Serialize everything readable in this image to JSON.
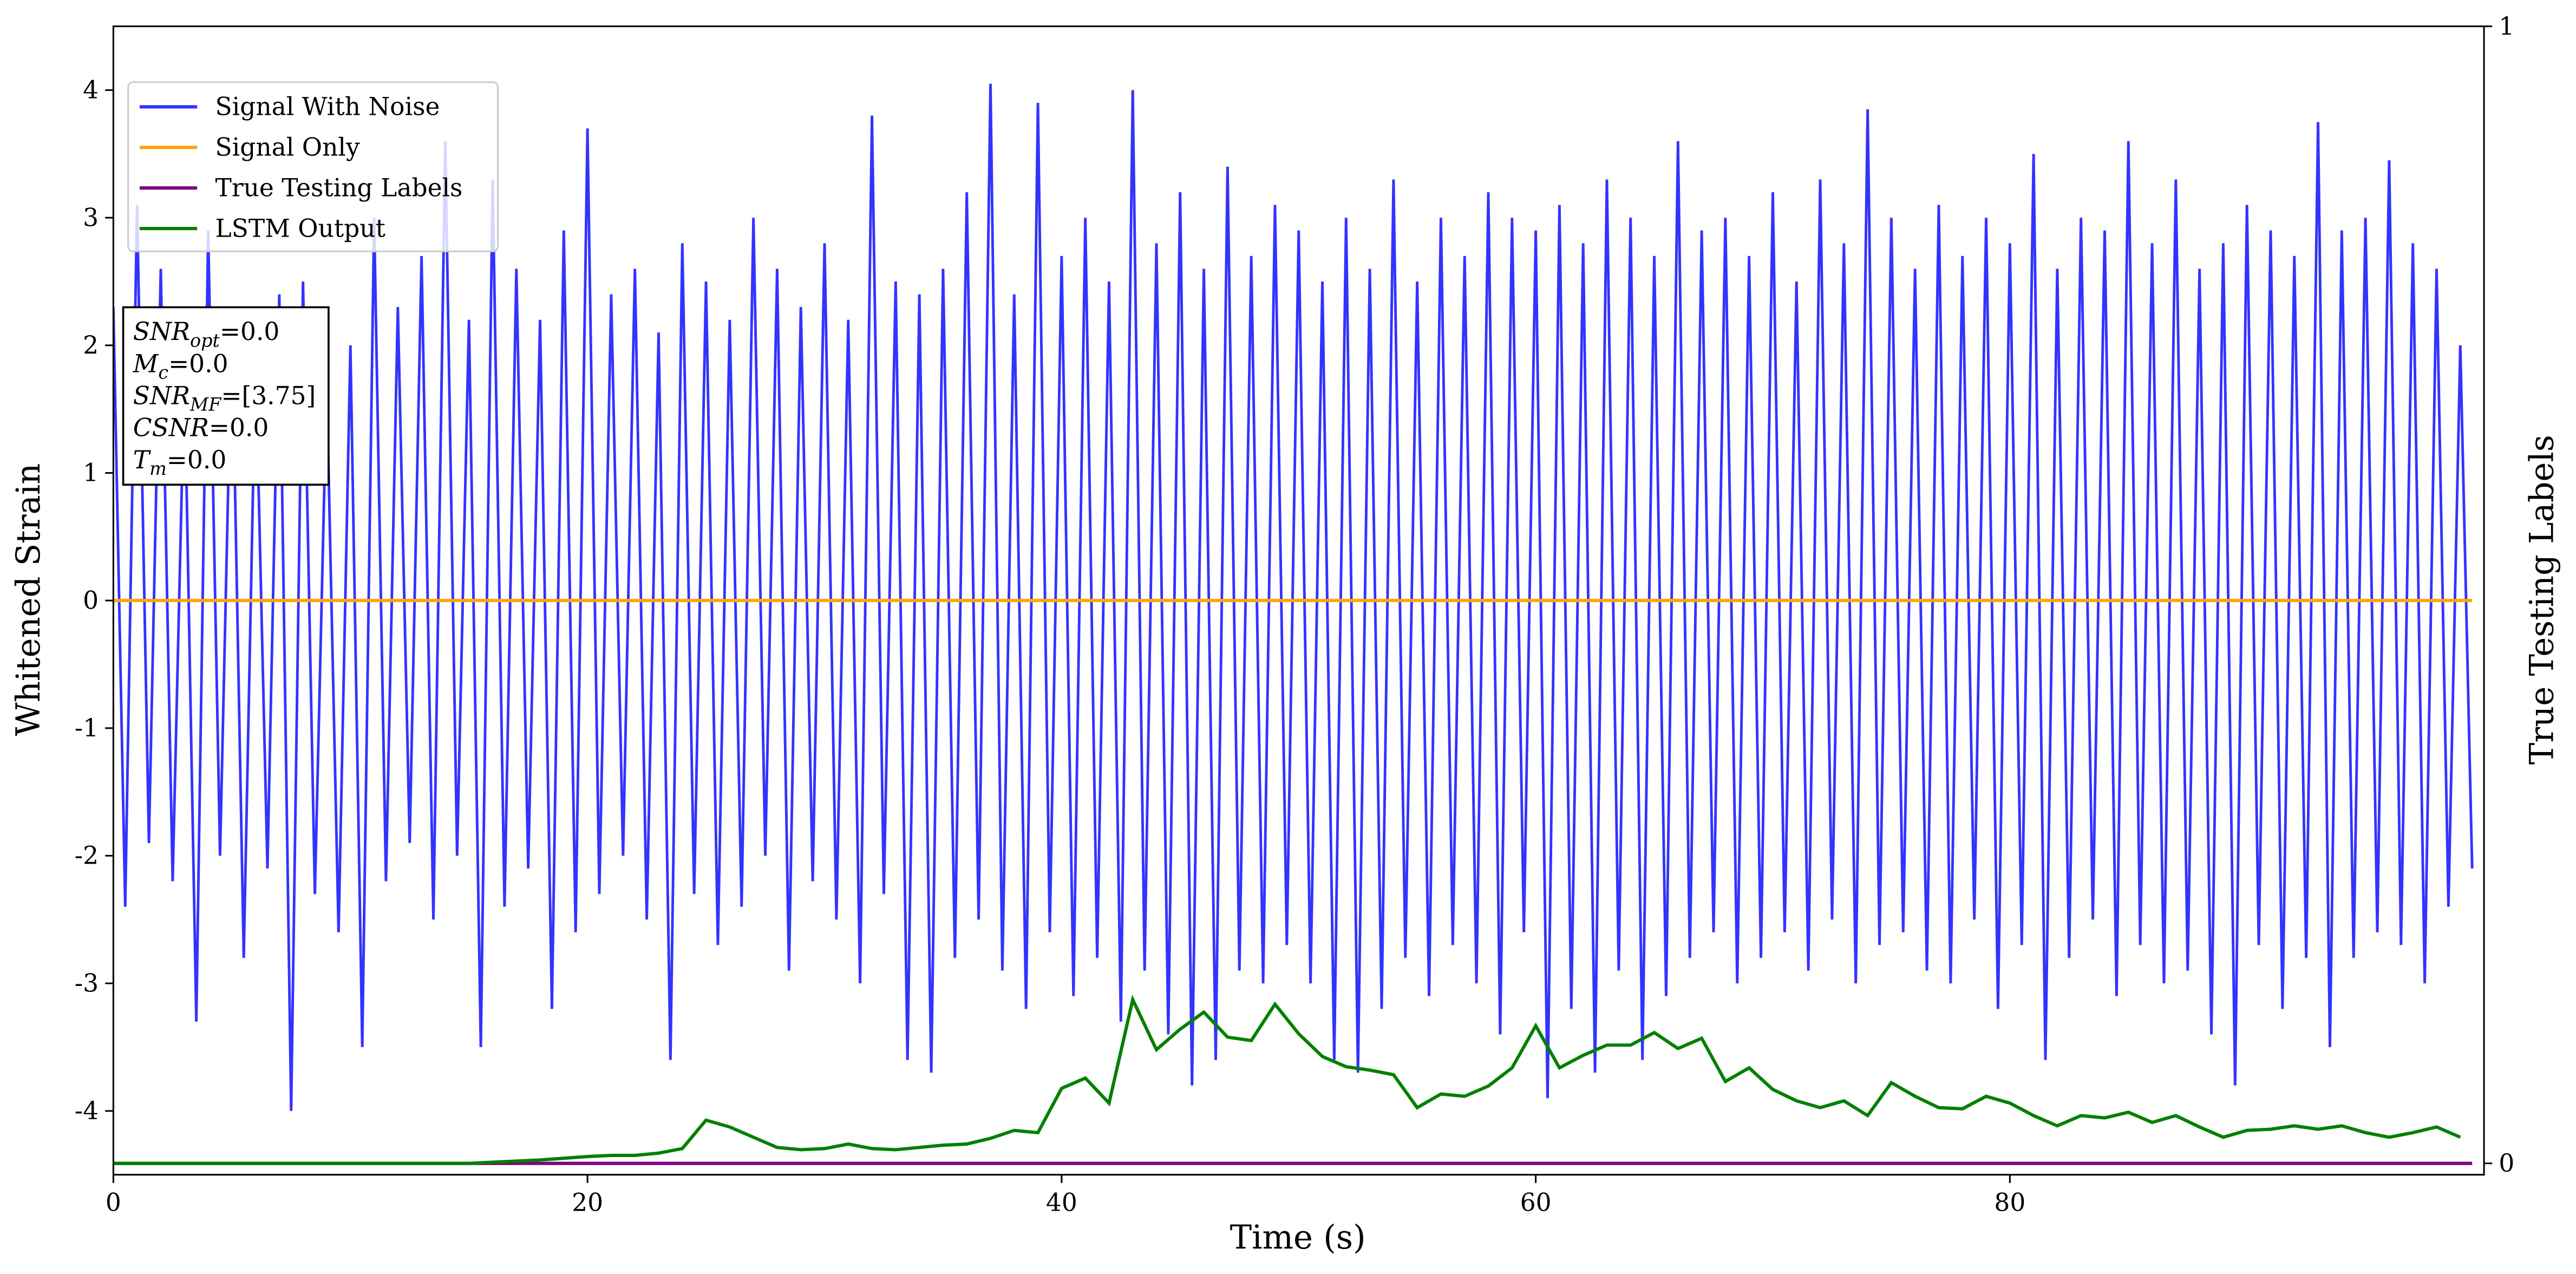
{
  "chart_data": {
    "type": "line",
    "xlabel": "Time (s)",
    "ylabel": "Whitened Strain",
    "y2label": "True Testing Labels",
    "xlim": [
      0,
      100
    ],
    "xticks": [
      0,
      20,
      40,
      60,
      80
    ],
    "ylim": [
      -4.5,
      4.5
    ],
    "yticks": [
      -4,
      -3,
      -2,
      -1,
      0,
      1,
      2,
      3,
      4
    ],
    "y2lim": [
      -0.01,
      1
    ],
    "y2ticks": [
      0,
      1
    ],
    "legend": "upper left",
    "series": [
      {
        "name": "Signal With Noise",
        "color": "#3333ff",
        "x": [
          0,
          0.5,
          1,
          1.5,
          2,
          2.5,
          3,
          3.5,
          4,
          4.5,
          5,
          5.5,
          6,
          6.5,
          7,
          7.5,
          8,
          8.5,
          9,
          9.5,
          10,
          10.5,
          11,
          11.5,
          12,
          12.5,
          13,
          13.5,
          14,
          14.5,
          15,
          15.5,
          16,
          16.5,
          17,
          17.5,
          18,
          18.5,
          19,
          19.5,
          20,
          20.5,
          21,
          21.5,
          22,
          22.5,
          23,
          23.5,
          24,
          24.5,
          25,
          25.5,
          26,
          26.5,
          27,
          27.5,
          28,
          28.5,
          29,
          29.5,
          30,
          30.5,
          31,
          31.5,
          32,
          32.5,
          33,
          33.5,
          34,
          34.5,
          35,
          35.5,
          36,
          36.5,
          37,
          37.5,
          38,
          38.5,
          39,
          39.5,
          40,
          40.5,
          41,
          41.5,
          42,
          42.5,
          43,
          43.5,
          44,
          44.5,
          45,
          45.5,
          46,
          46.5,
          47,
          47.5,
          48,
          48.5,
          49,
          49.5,
          50,
          50.5,
          51,
          51.5,
          52,
          52.5,
          53,
          53.5,
          54,
          54.5,
          55,
          55.5,
          56,
          56.5,
          57,
          57.5,
          58,
          58.5,
          59,
          59.5,
          60,
          60.5,
          61,
          61.5,
          62,
          62.5,
          63,
          63.5,
          64,
          64.5,
          65,
          65.5,
          66,
          66.5,
          67,
          67.5,
          68,
          68.5,
          69,
          69.5,
          70,
          70.5,
          71,
          71.5,
          72,
          72.5,
          73,
          73.5,
          74,
          74.5,
          75,
          75.5,
          76,
          76.5,
          77,
          77.5,
          78,
          78.5,
          79,
          79.5,
          80,
          80.5,
          81,
          81.5,
          82,
          82.5,
          83,
          83.5,
          84,
          84.5,
          85,
          85.5,
          86,
          86.5,
          87,
          87.5,
          88,
          88.5,
          89,
          89.5,
          90,
          90.5,
          91,
          91.5,
          92,
          92.5,
          93,
          93.5,
          94,
          94.5,
          95,
          95.5,
          96,
          96.5,
          97,
          97.5,
          98,
          98.5,
          99,
          99.5
        ],
        "values": [
          2.3,
          -2.4,
          3.1,
          -1.9,
          2.6,
          -2.2,
          1.8,
          -3.3,
          2.9,
          -2.0,
          2.2,
          -2.8,
          1.9,
          -2.1,
          2.4,
          -4.0,
          2.5,
          -2.3,
          1.7,
          -2.6,
          2.0,
          -3.5,
          3.0,
          -2.2,
          2.3,
          -1.9,
          2.7,
          -2.5,
          3.6,
          -2.0,
          2.2,
          -3.5,
          3.3,
          -2.4,
          2.6,
          -2.1,
          2.2,
          -3.2,
          2.9,
          -2.6,
          3.7,
          -2.3,
          2.4,
          -2.0,
          2.6,
          -2.5,
          2.1,
          -3.6,
          2.8,
          -2.3,
          2.5,
          -2.7,
          2.2,
          -2.4,
          3.0,
          -2.0,
          2.6,
          -2.9,
          2.3,
          -2.2,
          2.8,
          -2.5,
          2.2,
          -3.0,
          3.8,
          -2.3,
          2.5,
          -3.6,
          2.4,
          -3.7,
          2.6,
          -2.8,
          3.2,
          -2.5,
          4.05,
          -2.9,
          2.4,
          -3.2,
          3.9,
          -2.6,
          2.7,
          -3.1,
          3.0,
          -2.8,
          2.5,
          -3.3,
          4.0,
          -2.9,
          2.8,
          -3.4,
          3.2,
          -3.8,
          2.6,
          -3.6,
          3.4,
          -2.9,
          2.7,
          -3.0,
          3.1,
          -2.7,
          2.9,
          -3.0,
          2.5,
          -3.6,
          3.0,
          -3.7,
          2.6,
          -3.2,
          3.3,
          -2.8,
          2.5,
          -3.1,
          3.0,
          -2.7,
          2.7,
          -3.0,
          3.2,
          -3.4,
          3.0,
          -2.6,
          2.9,
          -3.9,
          3.1,
          -3.2,
          2.8,
          -3.7,
          3.3,
          -2.9,
          3.0,
          -3.6,
          2.7,
          -3.1,
          3.6,
          -2.8,
          2.9,
          -2.6,
          3.0,
          -3.0,
          2.7,
          -2.8,
          3.2,
          -2.6,
          2.5,
          -2.9,
          3.3,
          -2.5,
          2.8,
          -3.0,
          3.85,
          -2.7,
          3.0,
          -2.6,
          2.6,
          -2.9,
          3.1,
          -3.0,
          2.7,
          -2.5,
          3.0,
          -3.2,
          2.8,
          -2.7,
          3.5,
          -3.6,
          2.6,
          -2.8,
          3.0,
          -2.5,
          2.9,
          -3.1,
          3.6,
          -2.7,
          2.8,
          -3.0,
          3.3,
          -2.9,
          2.6,
          -3.4,
          2.8,
          -3.8,
          3.1,
          -2.7,
          2.9,
          -3.2,
          2.7,
          -2.8,
          3.75,
          -3.5,
          2.9,
          -2.8,
          3.0,
          -2.6,
          3.45,
          -2.7,
          2.8,
          -3.0,
          2.6,
          -2.4,
          2.0,
          -2.1
        ]
      },
      {
        "name": "Signal Only",
        "color": "#ffa500",
        "x": [
          0,
          99.5
        ],
        "values": [
          0,
          0
        ]
      },
      {
        "name": "True Testing Labels",
        "color": "#800080",
        "axis": "y2",
        "x": [
          0,
          99.5
        ],
        "values": [
          0,
          0
        ]
      },
      {
        "name": "LSTM Output",
        "color": "#008000",
        "axis": "y2",
        "x": [
          0,
          15,
          16,
          18,
          20,
          21,
          22,
          23,
          24,
          25,
          26,
          27,
          28,
          29,
          30,
          31,
          32,
          33,
          34,
          35,
          36,
          37,
          38,
          39,
          40,
          41,
          42,
          43,
          44,
          45,
          46,
          47,
          48,
          49,
          50,
          51,
          52,
          53,
          54,
          55,
          56,
          57,
          58,
          59,
          60,
          61,
          62,
          63,
          64,
          65,
          66,
          67,
          68,
          69,
          70,
          71,
          72,
          73,
          74,
          75,
          76,
          77,
          78,
          79,
          80,
          81,
          82,
          83,
          84,
          85,
          86,
          87,
          88,
          89,
          90,
          91,
          92,
          93,
          94,
          95,
          96,
          97,
          98,
          99
        ],
        "values": [
          0,
          0,
          0.001,
          0.003,
          0.006,
          0.007,
          0.007,
          0.009,
          0.013,
          0.038,
          0.032,
          0.023,
          0.014,
          0.012,
          0.013,
          0.017,
          0.013,
          0.012,
          0.014,
          0.016,
          0.017,
          0.022,
          0.029,
          0.027,
          0.066,
          0.075,
          0.053,
          0.144,
          0.1,
          0.118,
          0.133,
          0.111,
          0.108,
          0.14,
          0.114,
          0.094,
          0.085,
          0.082,
          0.078,
          0.049,
          0.061,
          0.059,
          0.068,
          0.084,
          0.121,
          0.084,
          0.095,
          0.104,
          0.104,
          0.115,
          0.101,
          0.11,
          0.072,
          0.084,
          0.065,
          0.055,
          0.049,
          0.055,
          0.042,
          0.071,
          0.059,
          0.049,
          0.048,
          0.059,
          0.053,
          0.042,
          0.033,
          0.042,
          0.04,
          0.045,
          0.036,
          0.042,
          0.032,
          0.023,
          0.029,
          0.03,
          0.033,
          0.03,
          0.033,
          0.027,
          0.023,
          0.027,
          0.032,
          0.023
        ]
      }
    ],
    "annotations": [
      {
        "main": "SNR",
        "sub": "opt",
        "rest": "=0.0"
      },
      {
        "main": "M",
        "sub": "c",
        "rest": "=0.0"
      },
      {
        "main": "SNR",
        "sub": "MF",
        "rest": "=[3.75]"
      },
      {
        "main": "CSNR",
        "rest": "=0.0"
      },
      {
        "main": "T",
        "sub": "m",
        "rest": "=0.0"
      }
    ]
  }
}
